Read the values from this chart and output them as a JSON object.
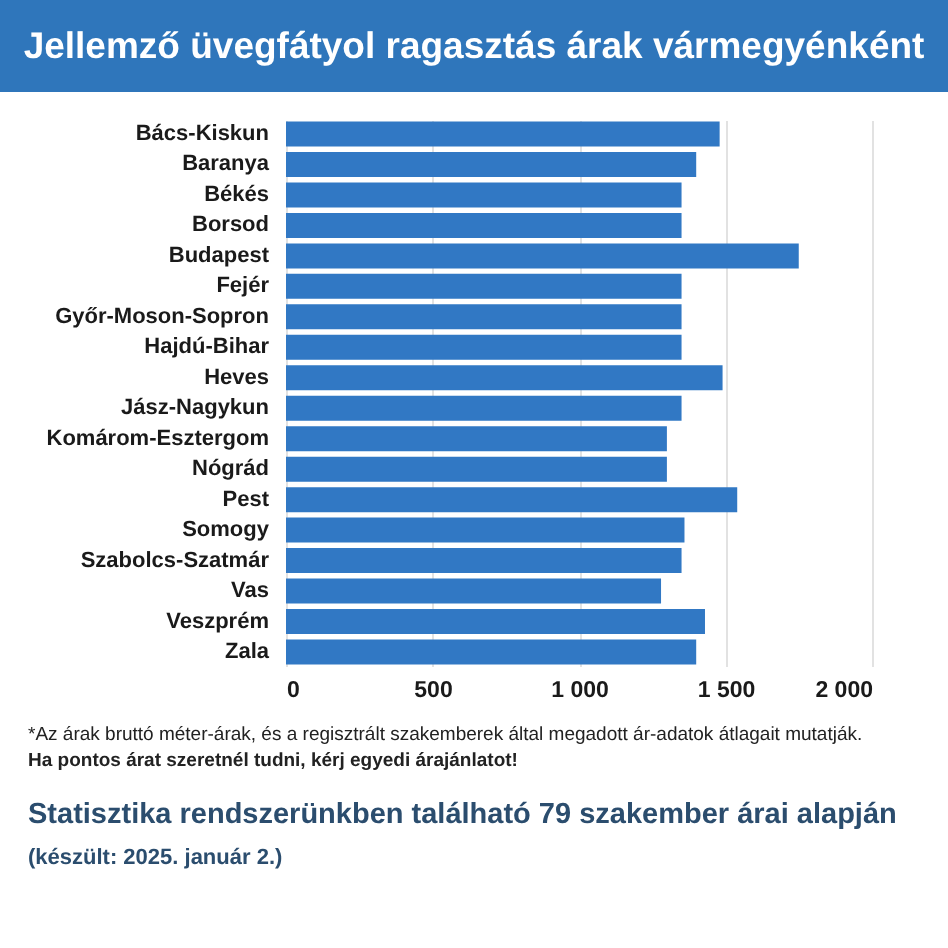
{
  "chart_data": {
    "type": "bar",
    "orientation": "horizontal",
    "title": "Jellemző üvegfátyol ragasztás árak vármegyénként",
    "categories": [
      "Bács-Kiskun",
      "Baranya",
      "Békés",
      "Borsod",
      "Budapest",
      "Fejér",
      "Győr-Moson-Sopron",
      "Hajdú-Bihar",
      "Heves",
      "Jász-Nagykun",
      "Komárom-Esztergom",
      "Nógrád",
      "Pest",
      "Somogy",
      "Szabolcs-Szatmár",
      "Vas",
      "Veszprém",
      "Zala"
    ],
    "values": [
      1480,
      1400,
      1350,
      1350,
      1750,
      1350,
      1350,
      1350,
      1490,
      1350,
      1300,
      1300,
      1540,
      1360,
      1350,
      1280,
      1430,
      1400
    ],
    "color": "#3178c4",
    "xlim": [
      0,
      2000
    ],
    "xticks": [
      0,
      500,
      {
        "value": 1000,
        "label": "1 000"
      },
      {
        "value": 1500,
        "label": "1 500"
      },
      {
        "value": 2000,
        "label": "2 000"
      }
    ],
    "grid": "x",
    "annotations": [
      "*Az árak bruttó méter-árak, és a regisztrált szakemberek által megadott ár-adatok átlagait mutatják.",
      "Ha pontos árat szeretnél tudni, kérj egyedi árajánlatot!",
      "Statisztika rendszerünkben található 79 szakember árai alapján",
      "(készült: 2025. január 2.)"
    ]
  }
}
